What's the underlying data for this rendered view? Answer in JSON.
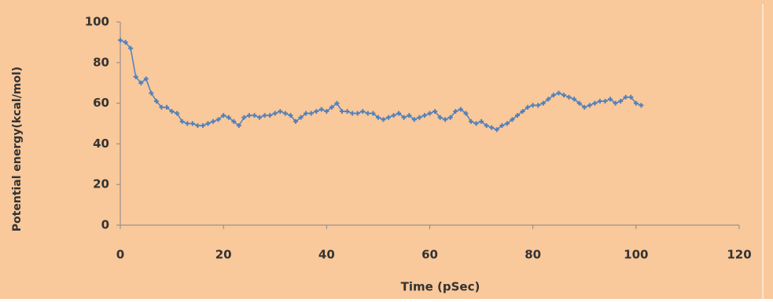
{
  "chart_data": {
    "type": "scatter",
    "x_label": "Time (pSec)",
    "y_label": "Potential energy(kcal/mol)",
    "xlim": [
      0,
      120
    ],
    "xticks": [
      0,
      20,
      40,
      60,
      80,
      100,
      120
    ],
    "ylim": [
      0,
      100
    ],
    "yticks": [
      0,
      20,
      40,
      60,
      80,
      100
    ],
    "color": "#4f81bd",
    "x": [
      0,
      1,
      2,
      3,
      4,
      5,
      6,
      7,
      8,
      9,
      10,
      11,
      12,
      13,
      14,
      15,
      16,
      17,
      18,
      19,
      20,
      21,
      22,
      23,
      24,
      25,
      26,
      27,
      28,
      29,
      30,
      31,
      32,
      33,
      34,
      35,
      36,
      37,
      38,
      39,
      40,
      41,
      42,
      43,
      44,
      45,
      46,
      47,
      48,
      49,
      50,
      51,
      52,
      53,
      54,
      55,
      56,
      57,
      58,
      59,
      60,
      61,
      62,
      63,
      64,
      65,
      66,
      67,
      68,
      69,
      70,
      71,
      72,
      73,
      74,
      75,
      76,
      77,
      78,
      79,
      80,
      81,
      82,
      83,
      84,
      85,
      86,
      87,
      88,
      89,
      90,
      91,
      92,
      93,
      94,
      95,
      96,
      97,
      98,
      99,
      100,
      101
    ],
    "values": [
      91,
      90,
      87,
      73,
      70,
      72,
      65,
      61,
      58,
      58,
      56,
      55,
      51,
      50,
      50,
      49,
      49,
      50,
      51,
      52,
      54,
      53,
      51,
      49,
      53,
      54,
      54,
      53,
      54,
      54,
      55,
      56,
      55,
      54,
      51,
      53,
      55,
      55,
      56,
      57,
      56,
      58,
      60,
      56,
      56,
      55,
      55,
      56,
      55,
      55,
      53,
      52,
      53,
      54,
      55,
      53,
      54,
      52,
      53,
      54,
      55,
      56,
      53,
      52,
      53,
      56,
      57,
      55,
      51,
      50,
      51,
      49,
      48,
      47,
      49,
      50,
      52,
      54,
      56,
      58,
      59,
      59,
      60,
      62,
      64,
      65,
      64,
      63,
      62,
      60,
      58,
      59,
      60,
      61,
      61,
      62,
      60,
      61,
      63,
      63,
      60,
      59
    ]
  }
}
